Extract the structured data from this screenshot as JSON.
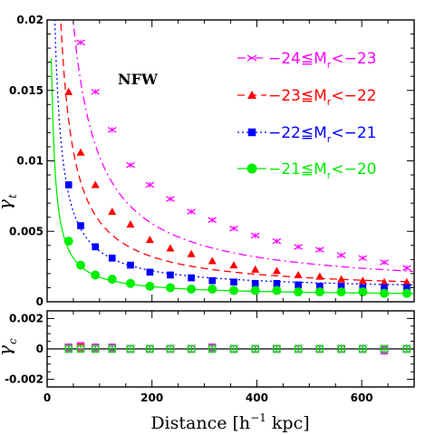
{
  "chart_data": [
    {
      "type": "scatter",
      "panel": "top",
      "annotation": "NFW",
      "xlabel": "",
      "ylabel": "γ_t",
      "ylabel_main": "γ",
      "ylabel_sub": "t",
      "xlim": [
        0,
        700
      ],
      "ylim": [
        0,
        0.02
      ],
      "xticks": [
        0,
        200,
        400,
        600
      ],
      "xticklabels": [],
      "yticks": [
        0,
        0.005,
        0.01,
        0.015,
        0.02
      ],
      "yticklabels": [
        "0",
        "0.005",
        "0.01",
        "0.015",
        "0.02"
      ],
      "legend_position": "top-right",
      "x": [
        41,
        64,
        92,
        124,
        159,
        196,
        235,
        275,
        315,
        356,
        397,
        438,
        479,
        520,
        561,
        602,
        643,
        686
      ],
      "series": [
        {
          "name": "−24≦M_r<−23",
          "legend_label": "−24≦M",
          "legend_sub": "r",
          "legend_tail": "<−23",
          "color": "#ff00ff",
          "marker": "x",
          "line_style": "dashdot",
          "values": [
            0.0222,
            0.0184,
            0.0149,
            0.0122,
            0.0097,
            0.0083,
            0.0073,
            0.0064,
            0.0058,
            0.0052,
            0.0047,
            0.0043,
            0.0039,
            0.0037,
            0.0033,
            0.0031,
            0.0028,
            0.0024
          ],
          "model_A": 0.95,
          "model_B": 0.0008
        },
        {
          "name": "−23≦M_r<−22",
          "legend_label": "−23≦M",
          "legend_sub": "r",
          "legend_tail": "<−22",
          "color": "#ff0000",
          "marker": "triangle",
          "line_style": "dashed",
          "values": [
            0.0149,
            0.0106,
            0.0083,
            0.0064,
            0.0055,
            0.0044,
            0.0038,
            0.0034,
            0.0029,
            0.0026,
            0.0023,
            0.0022,
            0.0019,
            0.0018,
            0.0016,
            0.0015,
            0.0014,
            0.0014
          ],
          "model_A": 0.5,
          "model_B": 0.0007
        },
        {
          "name": "−22≦M_r<−21",
          "legend_label": "−22≦M",
          "legend_sub": "r",
          "legend_tail": "<−21",
          "color": "#0000ff",
          "marker": "square",
          "line_style": "dotted",
          "values": [
            0.0083,
            0.0054,
            0.0039,
            0.0031,
            0.0026,
            0.0021,
            0.0019,
            0.0017,
            0.0015,
            0.0014,
            0.0013,
            0.0013,
            0.0012,
            0.0011,
            0.0011,
            0.001,
            0.001,
            0.001
          ],
          "model_A": 0.28,
          "model_B": 0.0008
        },
        {
          "name": "−21≦M_r<−20",
          "legend_label": "−21≦M",
          "legend_sub": "r",
          "legend_tail": "<−20",
          "color": "#00ee00",
          "marker": "circle",
          "line_style": "solid",
          "values": [
            0.0043,
            0.0026,
            0.0019,
            0.0016,
            0.0013,
            0.0011,
            0.001,
            0.0009,
            0.0009,
            0.0008,
            0.0008,
            0.0008,
            0.0007,
            0.0007,
            0.0007,
            0.0007,
            0.0006,
            0.0006
          ],
          "model_A": 0.135,
          "model_B": 0.0004
        }
      ]
    },
    {
      "type": "scatter",
      "panel": "bottom",
      "xlabel": "Distance [h⁻¹ kpc]",
      "xlabel_main": "Distance [h",
      "xlabel_sup": "−1",
      "xlabel_tail": " kpc]",
      "ylabel": "γ_c",
      "ylabel_main": "γ",
      "ylabel_sub": "c",
      "xlim": [
        0,
        700
      ],
      "ylim": [
        -0.0025,
        0.0025
      ],
      "xticks": [
        0,
        200,
        400,
        600
      ],
      "xticklabels": [
        "0",
        "200",
        "400",
        "600"
      ],
      "yticks": [
        -0.002,
        0,
        0.002
      ],
      "yticklabels": [
        "-0.002",
        "0",
        "0.002"
      ],
      "zero_line": true,
      "x": [
        41,
        64,
        92,
        124,
        159,
        196,
        235,
        275,
        315,
        356,
        397,
        438,
        479,
        520,
        561,
        602,
        643,
        686
      ],
      "series": [
        {
          "name": "−24≦M_r<−23",
          "color": "#ff00ff",
          "marker": "square-open",
          "values": [
            0.0001,
            0.0002,
            0.0001,
            0.0001,
            0.0,
            0.0,
            0.0,
            0.0,
            0.0001,
            0.0,
            0.0,
            0.0,
            0.0,
            0.0,
            0.0,
            0.0,
            -0.0001,
            0.0
          ]
        },
        {
          "name": "−23≦M_r<−22",
          "color": "#ff0000",
          "marker": "square-open",
          "values": [
            0.0,
            0.0001,
            0.0,
            0.0,
            0.0,
            0.0,
            0.0,
            0.0,
            0.0,
            0.0,
            0.0,
            0.0,
            0.0,
            0.0,
            0.0,
            0.0,
            0.0,
            0.0
          ]
        },
        {
          "name": "−22≦M_r<−21",
          "color": "#0000ff",
          "marker": "square-open",
          "values": [
            0.0,
            0.0,
            0.0,
            0.0,
            0.0,
            0.0,
            0.0,
            0.0,
            0.0,
            0.0,
            0.0,
            0.0,
            0.0,
            0.0,
            0.0,
            0.0,
            0.0,
            0.0
          ]
        },
        {
          "name": "−21≦M_r<−20",
          "color": "#00ee00",
          "marker": "square-open",
          "values": [
            0.0,
            0.0,
            0.0,
            0.0,
            0.0,
            0.0,
            0.0,
            0.0,
            0.0,
            0.0,
            0.0,
            0.0,
            0.0,
            0.0,
            0.0,
            0.0,
            0.0,
            0.0
          ]
        }
      ]
    }
  ]
}
